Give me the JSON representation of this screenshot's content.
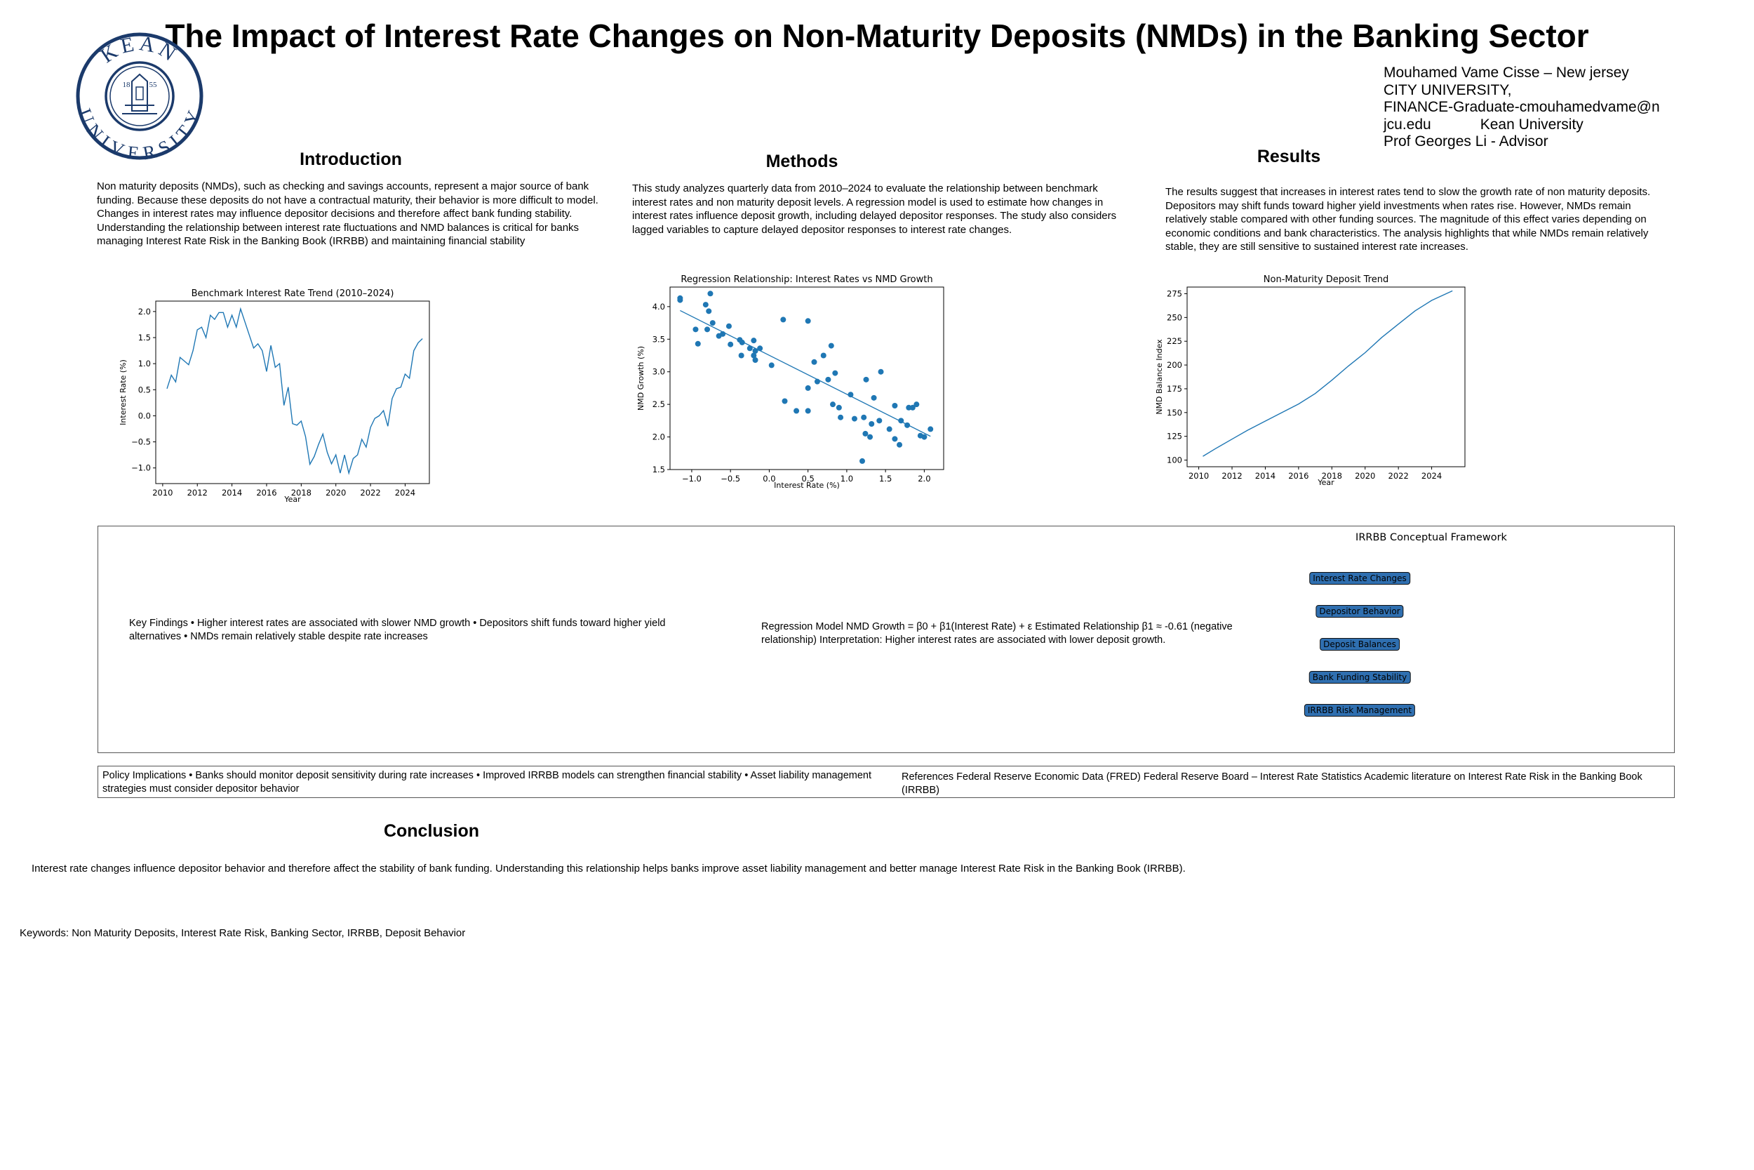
{
  "poster": {
    "title": "The Impact of Interest Rate Changes on Non-Maturity Deposits (NMDs) in the Banking Sector",
    "logo": {
      "top_text": "KEAN",
      "bottom_text": "UNIVERSITY",
      "year_left": "18",
      "year_right": "55",
      "color": "#1b3a6b"
    },
    "author_lines": [
      "Mouhamed Vame Cisse – New jersey",
      "CITY UNIVERSITY,",
      "FINANCE-Graduate-cmouhamedvame@n",
      "jcu.edu            Kean University",
      "Prof Georges Li - Advisor"
    ]
  },
  "introduction": {
    "heading": "Introduction",
    "text": "Non maturity deposits (NMDs), such as checking and savings accounts, represent a major source of bank funding. Because these deposits do not have a contractual maturity, their behavior is more difficult to model. Changes in interest rates may influence depositor decisions and therefore affect bank funding stability. Understanding the relationship between interest rate fluctuations and NMD balances is critical for banks managing Interest Rate Risk in the Banking Book (IRRBB) and maintaining financial stability"
  },
  "methods": {
    "heading": "Methods",
    "text": "This study analyzes quarterly data from 2010–2024 to evaluate the relationship between benchmark interest rates and non maturity deposit levels. A regression model is used to estimate how changes in interest rates influence deposit growth, including delayed depositor responses. The study also considers lagged variables to capture delayed depositor responses to interest rate changes."
  },
  "results": {
    "heading": "Results",
    "text": "The results suggest that increases in interest rates tend to slow the growth rate of non maturity deposits. Depositors may shift funds toward higher yield investments when rates rise. However, NMDs remain relatively stable compared with other funding sources. The magnitude of this effect varies depending on economic conditions and bank characteristics. The analysis highlights that while NMDs remain relatively stable, they are still sensitive to sustained interest rate increases."
  },
  "chart_data": [
    {
      "type": "line",
      "title": "Benchmark Interest Rate Trend (2010–2024)",
      "xlabel": "Year",
      "ylabel": "Interest Rate (%)",
      "xlim": [
        2009.6,
        2025.4
      ],
      "ylim": [
        -1.3,
        2.2
      ],
      "xticks": [
        2010,
        2012,
        2014,
        2016,
        2018,
        2020,
        2022,
        2024
      ],
      "yticks": [
        -1.0,
        -0.5,
        0.0,
        0.5,
        1.0,
        1.5,
        2.0
      ],
      "color": "#1f77b4",
      "x_start": 2010.25,
      "x_step": 0.25,
      "values": [
        0.52,
        0.78,
        0.65,
        1.12,
        1.05,
        0.98,
        1.25,
        1.65,
        1.7,
        1.5,
        1.93,
        1.85,
        1.98,
        1.98,
        1.7,
        1.93,
        1.7,
        2.05,
        1.8,
        1.55,
        1.3,
        1.38,
        1.25,
        0.85,
        1.35,
        0.93,
        1.0,
        0.2,
        0.55,
        -0.15,
        -0.18,
        -0.1,
        -0.4,
        -0.93,
        -0.78,
        -0.55,
        -0.35,
        -0.7,
        -0.92,
        -0.75,
        -1.1,
        -0.75,
        -1.1,
        -0.82,
        -0.75,
        -0.45,
        -0.6,
        -0.22,
        -0.05,
        0.0,
        0.1,
        -0.2,
        0.33,
        0.52,
        0.55,
        0.8,
        0.72,
        1.25,
        1.4,
        1.48
      ]
    },
    {
      "type": "scatter",
      "title": "Regression Relationship: Interest Rates vs NMD Growth",
      "xlabel": "Interest Rate (%)",
      "ylabel": "NMD Growth (%)",
      "xlim": [
        -1.28,
        2.25
      ],
      "ylim": [
        1.5,
        4.3
      ],
      "xticks": [
        -1.0,
        -0.5,
        0.0,
        0.5,
        1.0,
        1.5,
        2.0
      ],
      "xtick_labels": [
        "−1.0",
        "−0.5",
        "0.0",
        "0.5",
        "1.0",
        "1.5",
        "2.0"
      ],
      "yticks": [
        1.5,
        2.0,
        2.5,
        3.0,
        3.5,
        4.0
      ],
      "color": "#1f77b4",
      "points": [
        [
          -1.15,
          4.13
        ],
        [
          -1.15,
          4.1
        ],
        [
          -0.95,
          3.65
        ],
        [
          -0.92,
          3.43
        ],
        [
          -0.82,
          4.03
        ],
        [
          -0.8,
          3.65
        ],
        [
          -0.78,
          3.93
        ],
        [
          -0.76,
          4.2
        ],
        [
          -0.73,
          3.75
        ],
        [
          -0.65,
          3.55
        ],
        [
          -0.6,
          3.58
        ],
        [
          -0.52,
          3.7
        ],
        [
          -0.5,
          3.42
        ],
        [
          -0.38,
          3.49
        ],
        [
          -0.36,
          3.25
        ],
        [
          -0.35,
          3.45
        ],
        [
          -0.25,
          3.36
        ],
        [
          -0.2,
          3.48
        ],
        [
          -0.2,
          3.25
        ],
        [
          -0.18,
          3.32
        ],
        [
          -0.18,
          3.18
        ],
        [
          -0.12,
          3.36
        ],
        [
          0.03,
          3.1
        ],
        [
          0.18,
          3.8
        ],
        [
          0.2,
          2.55
        ],
        [
          0.35,
          2.4
        ],
        [
          0.5,
          3.78
        ],
        [
          0.5,
          2.75
        ],
        [
          0.5,
          2.4
        ],
        [
          0.58,
          3.15
        ],
        [
          0.62,
          2.85
        ],
        [
          0.7,
          3.25
        ],
        [
          0.76,
          2.88
        ],
        [
          0.8,
          3.4
        ],
        [
          0.82,
          2.5
        ],
        [
          0.85,
          2.98
        ],
        [
          0.9,
          2.45
        ],
        [
          0.92,
          2.3
        ],
        [
          1.05,
          2.65
        ],
        [
          1.1,
          2.28
        ],
        [
          1.2,
          1.63
        ],
        [
          1.22,
          2.3
        ],
        [
          1.24,
          2.05
        ],
        [
          1.25,
          2.88
        ],
        [
          1.3,
          2.0
        ],
        [
          1.32,
          2.2
        ],
        [
          1.35,
          2.6
        ],
        [
          1.42,
          2.25
        ],
        [
          1.44,
          3.0
        ],
        [
          1.55,
          2.12
        ],
        [
          1.62,
          2.48
        ],
        [
          1.62,
          1.97
        ],
        [
          1.68,
          1.88
        ],
        [
          1.7,
          2.25
        ],
        [
          1.78,
          2.18
        ],
        [
          1.8,
          2.45
        ],
        [
          1.85,
          2.45
        ],
        [
          1.9,
          2.5
        ],
        [
          1.95,
          2.02
        ],
        [
          2.0,
          2.0
        ],
        [
          2.08,
          2.12
        ]
      ],
      "fit_line": [
        [
          -1.15,
          3.94
        ],
        [
          2.08,
          2.01
        ]
      ]
    },
    {
      "type": "line",
      "title": "Non-Maturity Deposit Trend",
      "xlabel": "Year",
      "ylabel": "NMD Balance Index",
      "xlim": [
        2009.3,
        2026.0
      ],
      "ylim": [
        93,
        282
      ],
      "xticks": [
        2010,
        2012,
        2014,
        2016,
        2018,
        2020,
        2022,
        2024
      ],
      "yticks": [
        100,
        125,
        150,
        175,
        200,
        225,
        250,
        275
      ],
      "color": "#1f77b4",
      "points": [
        [
          2010.25,
          104
        ],
        [
          2011,
          112
        ],
        [
          2012,
          122
        ],
        [
          2013,
          132
        ],
        [
          2014,
          141
        ],
        [
          2015,
          150
        ],
        [
          2016,
          159
        ],
        [
          2017,
          170
        ],
        [
          2018,
          184
        ],
        [
          2019,
          199
        ],
        [
          2020,
          213
        ],
        [
          2021,
          229
        ],
        [
          2022,
          243
        ],
        [
          2023,
          257
        ],
        [
          2024,
          268
        ],
        [
          2025.25,
          278
        ]
      ]
    }
  ],
  "framework_panel": {
    "key_findings": "Key Findings • Higher interest rates are associated with slower NMD growth • Depositors shift funds toward higher yield alternatives • NMDs remain relatively stable despite rate increases",
    "regression": "Regression Model NMD Growth = β0 + β1(Interest Rate) + ε Estimated Relationship β1 ≈ -0.61 (negative relationship) Interpretation: Higher interest rates are associated with lower deposit growth.",
    "framework_title": "IRRBB Conceptual Framework",
    "framework_boxes": [
      "Interest Rate Changes",
      "Depositor Behavior",
      "Deposit Balances",
      "Bank Funding Stability",
      "IRRBB Risk Management"
    ],
    "box_color": "#2f6fb0"
  },
  "bottom_panel": {
    "policy": "Policy Implications • Banks should monitor deposit sensitivity during rate increases • Improved IRRBB models can strengthen financial stability • Asset liability management strategies must consider depositor behavior",
    "references": "References Federal Reserve Economic Data (FRED) Federal Reserve Board – Interest Rate Statistics Academic literature on Interest Rate Risk in the Banking Book (IRRBB)"
  },
  "conclusion": {
    "heading": "Conclusion",
    "text": "Interest rate changes influence depositor behavior and therefore affect the stability of bank funding. Understanding this relationship helps banks improve asset liability management and better manage Interest Rate Risk in the Banking Book (IRRBB)."
  },
  "keywords": "Keywords: Non Maturity Deposits, Interest Rate Risk, Banking Sector, IRRBB, Deposit Behavior"
}
